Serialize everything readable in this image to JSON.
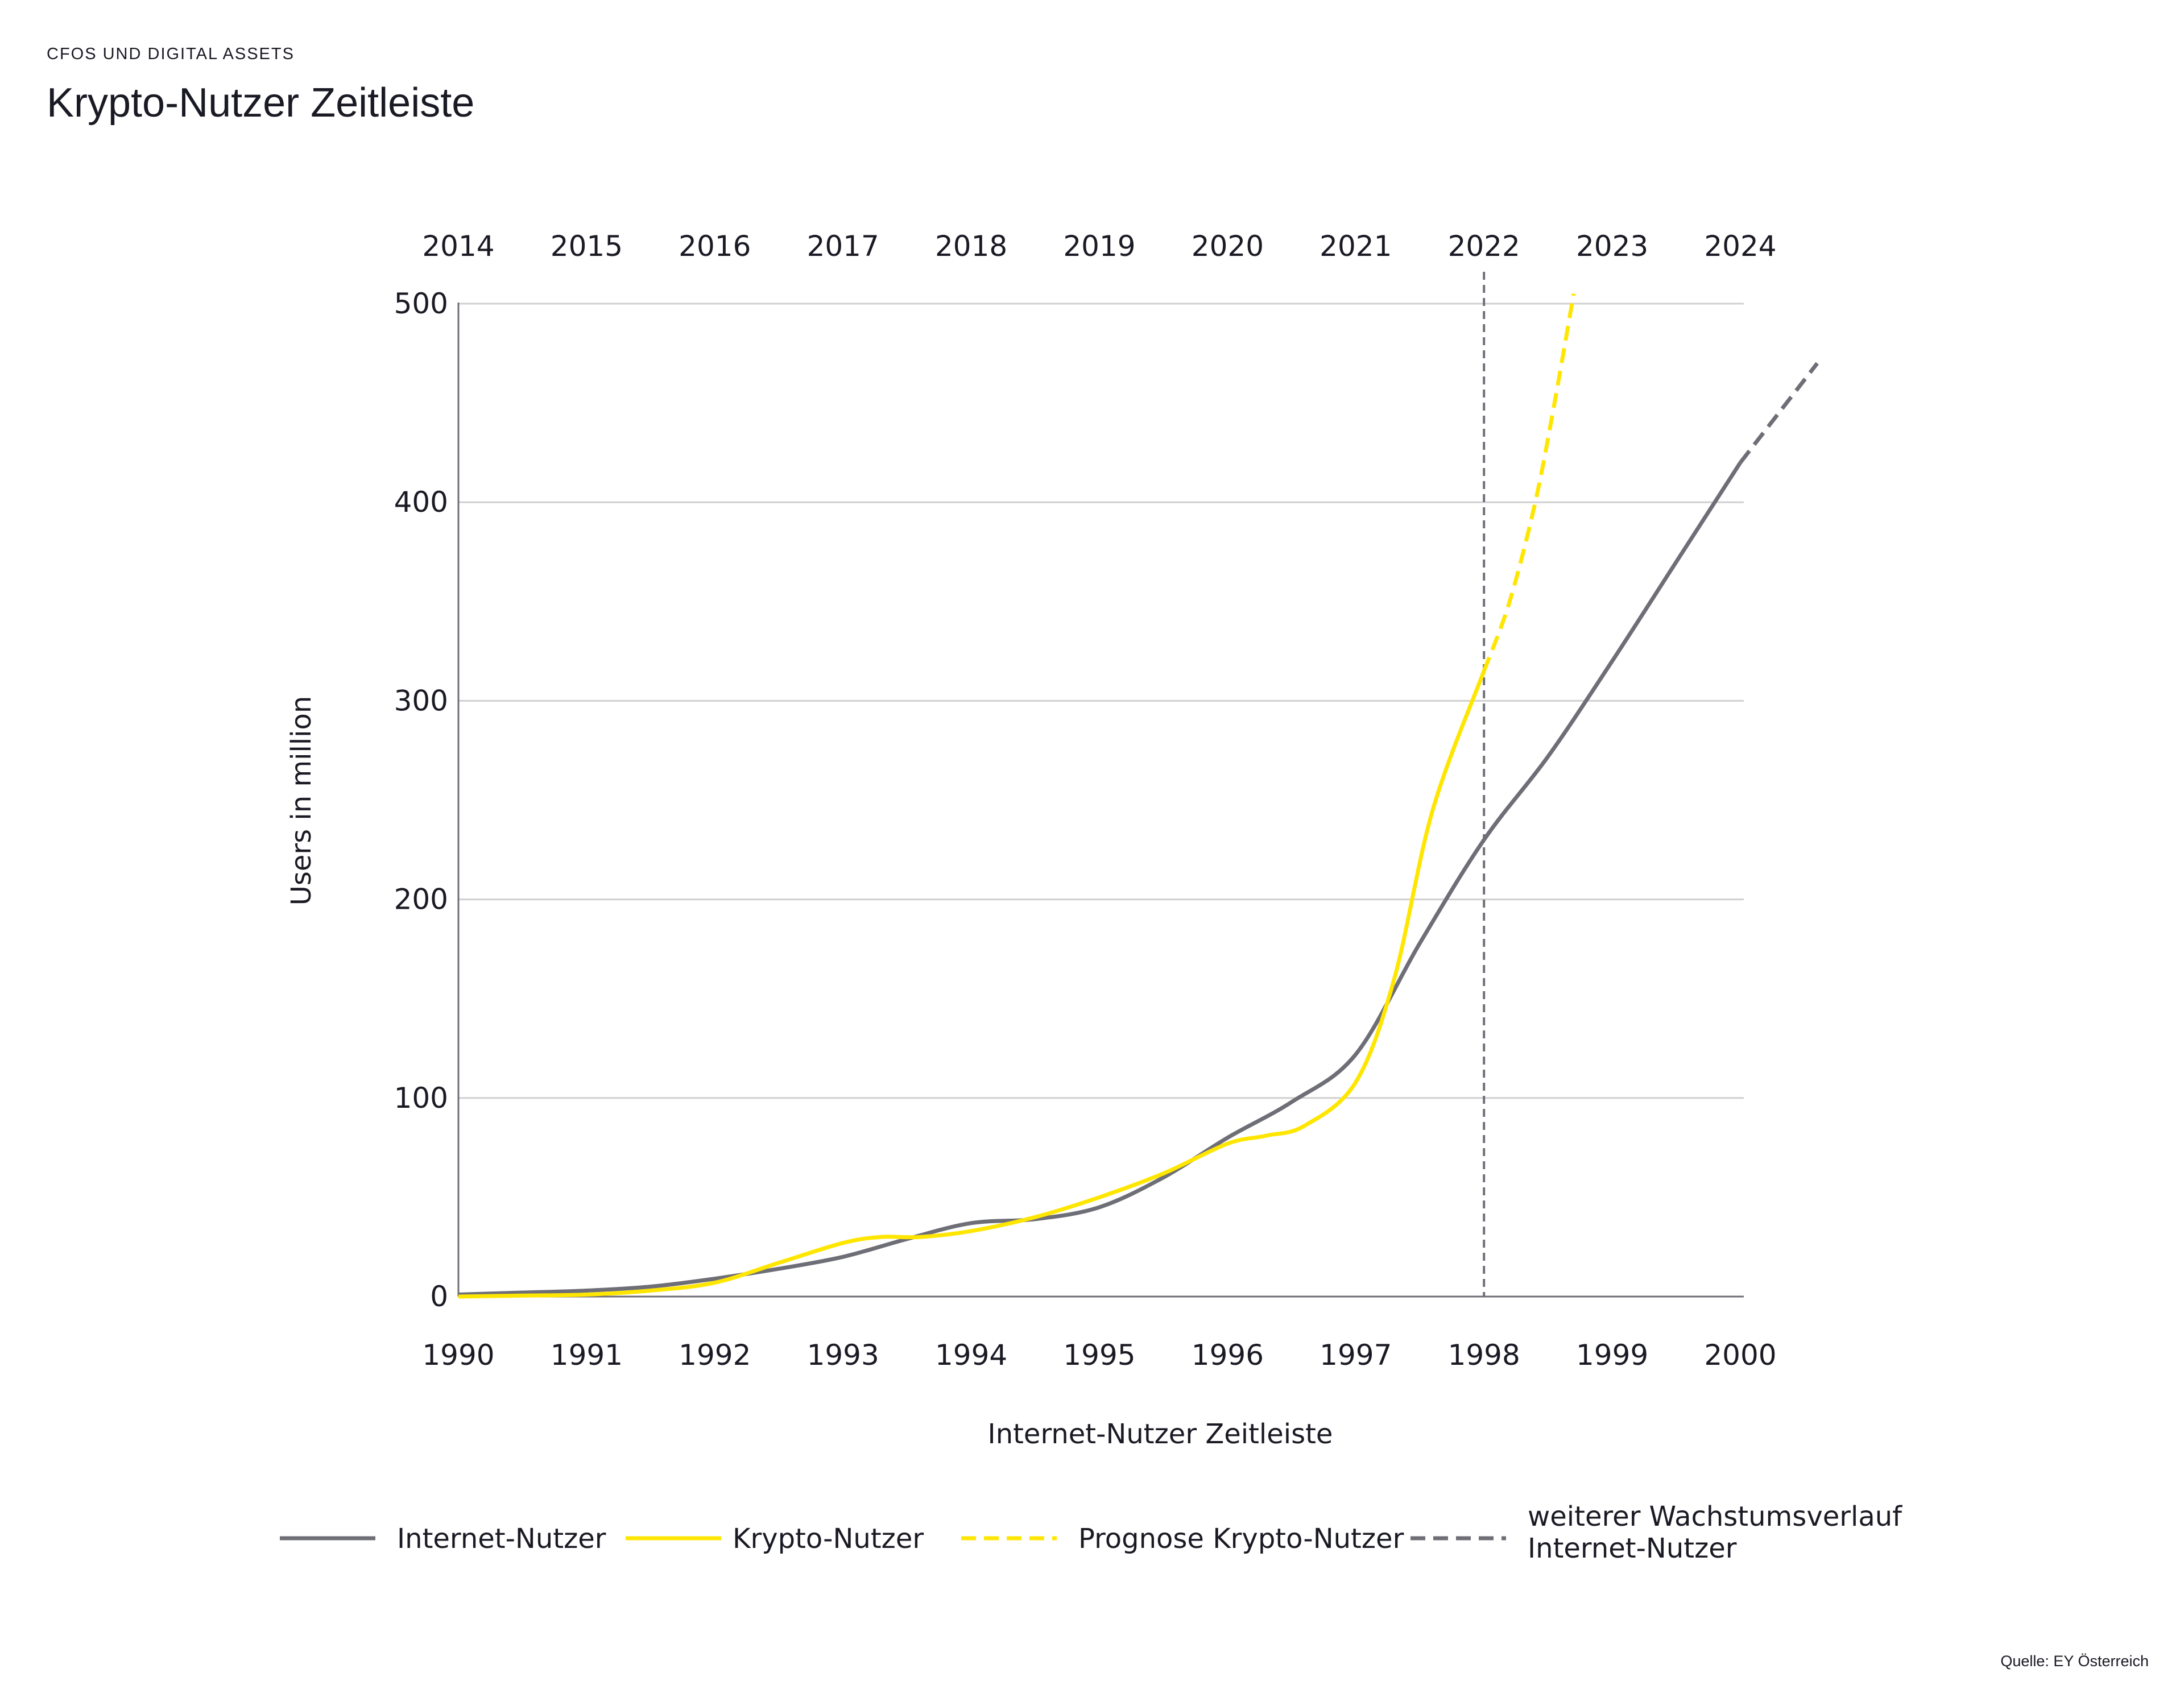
{
  "header": {
    "overline": "CFOS UND DIGITAL ASSETS",
    "title": "Krypto-Nutzer Zeitleiste"
  },
  "source": "Quelle: EY Österreich",
  "colors": {
    "internet": "#6e6e77",
    "krypto": "#ffe600",
    "grid": "#d0d0d0",
    "axis": "#6e6e77",
    "text": "#1a1a24"
  },
  "chart_data": {
    "type": "line",
    "title": "Krypto-Nutzer Zeitleiste",
    "xlabel": "Internet-Nutzer Zeitleiste",
    "ylabel": "Users in million",
    "ylim": [
      0,
      500
    ],
    "yticks": [
      0,
      100,
      200,
      300,
      400,
      500
    ],
    "xlim": [
      1990,
      2000
    ],
    "x_bottom_ticks": [
      "1990",
      "1991",
      "1992",
      "1993",
      "1994",
      "1995",
      "1996",
      "1997",
      "1998",
      "1999",
      "2000"
    ],
    "x_top_ticks": [
      "2014",
      "2015",
      "2016",
      "2017",
      "2018",
      "2019",
      "2020",
      "2021",
      "2022",
      "2023",
      "2024"
    ],
    "top_axis_offset_years": 24,
    "reference_line": {
      "x": 1998,
      "style": "dashed"
    },
    "grid": "horizontal",
    "legend_position": "bottom",
    "series": [
      {
        "name": "Internet-Nutzer",
        "style": "solid",
        "color": "#6e6e77",
        "x": [
          1990,
          1990.5,
          1991,
          1991.5,
          1992,
          1992.5,
          1993,
          1993.5,
          1994,
          1994.5,
          1995,
          1995.5,
          1996,
          1996.5,
          1997,
          1997.5,
          1998,
          1998.5,
          1999,
          1999.5,
          2000
        ],
        "y": [
          1,
          2,
          3,
          5,
          9,
          14,
          20,
          29,
          37,
          39,
          45,
          60,
          80,
          98,
          122,
          178,
          230,
          272,
          320,
          370,
          420
        ]
      },
      {
        "name": "Krypto-Nutzer",
        "style": "solid",
        "color": "#ffe600",
        "x": [
          1990,
          1990.5,
          1991,
          1991.5,
          1992,
          1992.5,
          1993,
          1993.3,
          1993.6,
          1994,
          1994.5,
          1995,
          1995.5,
          1996,
          1996.3,
          1996.6,
          1997,
          1997.3,
          1997.6,
          1998
        ],
        "y": [
          0,
          0.5,
          1,
          3,
          7,
          17,
          27,
          30,
          30,
          33,
          40,
          50,
          62,
          77,
          81,
          86,
          108,
          160,
          245,
          315
        ]
      },
      {
        "name": "Prognose Krypto-Nutzer",
        "style": "dashed",
        "color": "#ffe600",
        "x": [
          1998,
          1998.2,
          1998.4,
          1998.55,
          1998.7
        ],
        "y": [
          315,
          350,
          400,
          450,
          505
        ]
      },
      {
        "name": "weiterer Wachstumsverlauf Internet-Nutzer",
        "style": "dashed",
        "color": "#6e6e77",
        "x": [
          2000,
          2000.3,
          2000.6
        ],
        "y": [
          420,
          445,
          470
        ]
      }
    ]
  },
  "legend": [
    {
      "label": "Internet-Nutzer",
      "style": "solid",
      "color": "#6e6e77"
    },
    {
      "label": "Krypto-Nutzer",
      "style": "solid",
      "color": "#ffe600"
    },
    {
      "label": "Prognose Krypto-Nutzer",
      "style": "dashed",
      "color": "#ffe600"
    },
    {
      "label_lines": [
        "weiterer Wachstumsverlauf",
        "Internet-Nutzer"
      ],
      "style": "dashed",
      "color": "#6e6e77"
    }
  ]
}
